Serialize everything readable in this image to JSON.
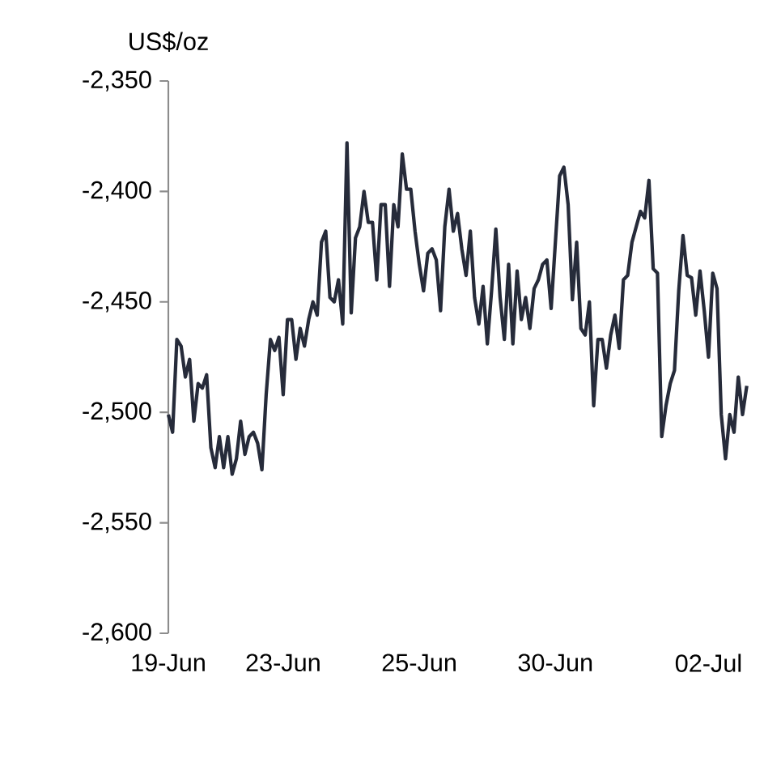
{
  "chart_data": {
    "type": "line",
    "ylabel": "US$/oz",
    "categories": [
      "19-Jun",
      null,
      null,
      null,
      null,
      null,
      null,
      null,
      null,
      null,
      null,
      null,
      null,
      null,
      null,
      null,
      null,
      null,
      null,
      null,
      null,
      null,
      null,
      null,
      null,
      null,
      null,
      "23-Jun",
      null,
      null,
      null,
      null,
      null,
      null,
      null,
      null,
      null,
      null,
      null,
      null,
      null,
      null,
      null,
      null,
      null,
      null,
      null,
      null,
      null,
      null,
      null,
      null,
      null,
      null,
      null,
      null,
      null,
      null,
      null,
      "25-Jun",
      null,
      null,
      null,
      null,
      null,
      null,
      null,
      null,
      null,
      null,
      null,
      null,
      null,
      null,
      null,
      null,
      null,
      null,
      null,
      null,
      null,
      null,
      null,
      null,
      null,
      null,
      null,
      null,
      null,
      null,
      null,
      "30-Jun",
      null,
      null,
      null,
      null,
      null,
      null,
      null,
      null,
      null,
      null,
      null,
      null,
      null,
      null,
      null,
      null,
      null,
      null,
      null,
      null,
      null,
      null,
      null,
      null,
      null,
      null,
      null,
      null,
      null,
      null,
      null,
      null,
      null,
      null,
      null,
      "02-Jul",
      null,
      null,
      null,
      null,
      null,
      null,
      null,
      null,
      null
    ],
    "ylim": [
      -2600,
      -2350
    ],
    "yticks": [
      {
        "value": -2600,
        "label": "-2,600"
      },
      {
        "value": -2550,
        "label": "-2,550"
      },
      {
        "value": -2500,
        "label": "-2,500"
      },
      {
        "value": -2450,
        "label": "-2,450"
      },
      {
        "value": -2400,
        "label": "-2,400"
      },
      {
        "value": -2350,
        "label": "-2,350"
      }
    ],
    "grid": false,
    "legend": false,
    "series": [
      {
        "color": "#262b3a",
        "values": [
          -2501,
          -2509,
          -2467,
          -2470,
          -2484,
          -2476,
          -2504,
          -2487,
          -2489,
          -2483,
          -2516,
          -2525,
          -2511,
          -2525,
          -2511,
          -2528,
          -2521,
          -2504,
          -2519,
          -2511,
          -2509,
          -2514,
          -2526,
          -2492,
          -2467,
          -2472,
          -2466,
          -2492,
          -2458,
          -2458,
          -2476,
          -2462,
          -2470,
          -2458,
          -2450,
          -2456,
          -2423,
          -2418,
          -2448,
          -2450,
          -2440,
          -2460,
          -2378,
          -2455,
          -2421,
          -2416,
          -2400,
          -2414,
          -2414,
          -2440,
          -2406,
          -2406,
          -2443,
          -2406,
          -2416,
          -2383,
          -2399,
          -2399,
          -2418,
          -2433,
          -2445,
          -2428,
          -2426,
          -2431,
          -2454,
          -2416,
          -2399,
          -2418,
          -2410,
          -2426,
          -2438,
          -2418,
          -2448,
          -2460,
          -2443,
          -2469,
          -2445,
          -2417,
          -2448,
          -2467,
          -2433,
          -2469,
          -2436,
          -2458,
          -2448,
          -2462,
          -2444,
          -2440,
          -2433,
          -2431,
          -2453,
          -2423,
          -2393,
          -2389,
          -2406,
          -2449,
          -2423,
          -2462,
          -2465,
          -2450,
          -2497,
          -2467,
          -2467,
          -2480,
          -2465,
          -2456,
          -2471,
          -2440,
          -2438,
          -2423,
          -2416,
          -2409,
          -2412,
          -2395,
          -2435,
          -2437,
          -2511,
          -2497,
          -2487,
          -2481,
          -2445,
          -2420,
          -2438,
          -2439,
          -2456,
          -2436,
          -2454,
          -2475,
          -2437,
          -2444,
          -2501,
          -2521,
          -2501,
          -2509,
          -2484,
          -2501,
          -2488
        ]
      }
    ]
  }
}
